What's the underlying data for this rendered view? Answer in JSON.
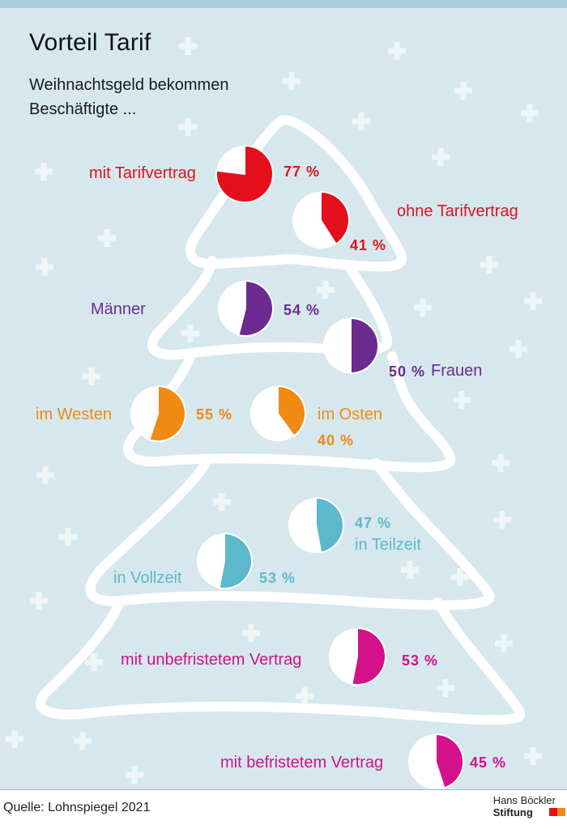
{
  "title": "Vorteil Tarif",
  "subtitle": "Weihnachtsgeld bekommen Beschäftigte ...",
  "source": "Quelle: Lohnspiegel 2021",
  "logo": {
    "line1": "Hans Böckler",
    "line2": "Stiftung"
  },
  "colors": {
    "background": "#d6e8ee",
    "red": "#e3101c",
    "purple": "#6d2a91",
    "orange": "#ef8a12",
    "teal": "#5db8cb",
    "magenta": "#d4108a"
  },
  "chart_data": {
    "type": "pie",
    "title": "Vorteil Tarif",
    "subtitle": "Weihnachtsgeld bekommen Beschäftigte ...",
    "unit": "%",
    "items": [
      {
        "label": "mit Tarifvertrag",
        "value": 77,
        "value_label": "77 %",
        "color": "#e3101c"
      },
      {
        "label": "ohne Tarifvertrag",
        "value": 41,
        "value_label": "41 %",
        "color": "#e3101c"
      },
      {
        "label": "Männer",
        "value": 54,
        "value_label": "54 %",
        "color": "#6d2a91"
      },
      {
        "label": "Frauen",
        "value": 50,
        "value_label": "50 %",
        "color": "#6d2a91"
      },
      {
        "label": "im Westen",
        "value": 55,
        "value_label": "55 %",
        "color": "#ef8a12"
      },
      {
        "label": "im Osten",
        "value": 40,
        "value_label": "40 %",
        "color": "#ef8a12"
      },
      {
        "label": "in Teilzeit",
        "value": 47,
        "value_label": "47 %",
        "color": "#5db8cb"
      },
      {
        "label": "in Vollzeit",
        "value": 53,
        "value_label": "53 %",
        "color": "#5db8cb"
      },
      {
        "label": "mit unbefristetem Vertrag",
        "value": 53,
        "value_label": "53 %",
        "color": "#d4108a"
      },
      {
        "label": "mit befristetem Vertrag",
        "value": 45,
        "value_label": "45 %",
        "color": "#d4108a"
      }
    ]
  }
}
